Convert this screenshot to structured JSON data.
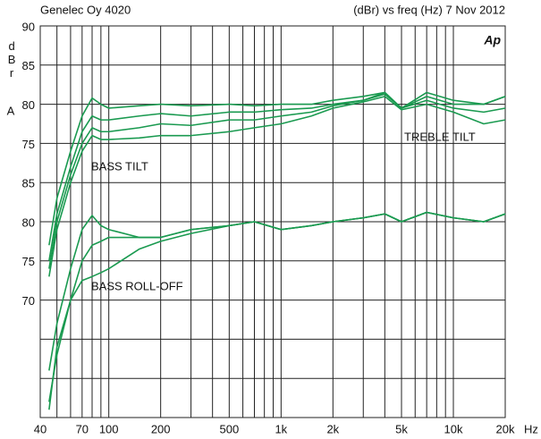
{
  "chart_data": {
    "type": "line",
    "header_left": "Genelec Oy 4020",
    "header_right": "(dBr) vs freq (Hz) 7 Nov 2012",
    "ylabel": "dBr",
    "ylabel_unit": "A",
    "xlabel": "Hz",
    "logo": "Ap",
    "annotations": [
      "BASS TILT",
      "TREBLE TILT",
      "BASS ROLL-OFF"
    ],
    "xscale": "log",
    "grid": true,
    "xlim": [
      40,
      20000
    ],
    "ylim": [
      40,
      90
    ],
    "xticks": [
      40,
      70,
      100,
      200,
      500,
      {
        "value": 1000,
        "label": "1k"
      },
      {
        "value": 2000,
        "label": "2k"
      },
      {
        "value": 5000,
        "label": "5k"
      },
      {
        "value": 10000,
        "label": "10k"
      },
      {
        "value": 20000,
        "label": "20k"
      }
    ],
    "xminor": [
      50,
      60,
      80,
      90,
      300,
      400,
      600,
      700,
      800,
      900,
      3000,
      4000,
      6000,
      7000,
      8000,
      9000
    ],
    "yticks": [
      90,
      85,
      80,
      75,
      {
        "value": 70,
        "label": "85"
      },
      {
        "value": 65,
        "label": "80"
      },
      {
        "value": 60,
        "label": "75"
      },
      {
        "value": 55,
        "label": "70"
      }
    ],
    "yminor": [
      50,
      45
    ],
    "x": [
      45,
      50,
      60,
      70,
      80,
      90,
      100,
      150,
      200,
      300,
      500,
      700,
      1000,
      1500,
      2000,
      3000,
      4000,
      5000,
      7000,
      10000,
      15000,
      20000
    ],
    "series": [
      {
        "color": "#1a9a50",
        "values": [
          62,
          68,
          74,
          78.5,
          80.8,
          80,
          79.5,
          79.8,
          80,
          79.8,
          80,
          79.8,
          80,
          80,
          80.5,
          81,
          81.5,
          79.5,
          81.5,
          80.5,
          80,
          81
        ]
      },
      {
        "color": "#1a9a50",
        "values": [
          60,
          66,
          72,
          76.5,
          78.5,
          78,
          78,
          78.5,
          78.8,
          78.5,
          79,
          79,
          79.3,
          79.5,
          80,
          80.5,
          81.5,
          79.5,
          81,
          80,
          80,
          81
        ]
      },
      {
        "color": "#1a9a50",
        "values": [
          59,
          65,
          71,
          75,
          77,
          76.5,
          76.5,
          77,
          77.5,
          77.3,
          78,
          78,
          78.5,
          79,
          79.8,
          80.5,
          81.3,
          79.5,
          80.5,
          79.5,
          79,
          79.5
        ]
      },
      {
        "color": "#1a9a50",
        "values": [
          58,
          64,
          70,
          74,
          76,
          75.5,
          75.5,
          75.7,
          76,
          76,
          76.5,
          77,
          77.5,
          78.5,
          79.5,
          80.3,
          81,
          79.3,
          80,
          79,
          77.5,
          78
        ]
      },
      {
        "color": "#1a9a50",
        "values": [
          46,
          52,
          59,
          64,
          65.8,
          64.5,
          64,
          63,
          63,
          64,
          64.5,
          65,
          64,
          64.5,
          65,
          65.5,
          66,
          65,
          66.2,
          65.5,
          65,
          66
        ]
      },
      {
        "color": "#1a9a50",
        "values": [
          42,
          48,
          55,
          60,
          62,
          62.5,
          63,
          63,
          63,
          64,
          64.5,
          65,
          64,
          64.5,
          65,
          65.5,
          66,
          65,
          66.2,
          65.5,
          65,
          66
        ]
      },
      {
        "color": "#1a9a50",
        "values": [
          41,
          49,
          55,
          57.5,
          58,
          58.5,
          59,
          61.5,
          62.5,
          63.5,
          64.5,
          65,
          64,
          64.5,
          65,
          65.5,
          66,
          65,
          66.2,
          65.5,
          65,
          66
        ]
      }
    ]
  }
}
